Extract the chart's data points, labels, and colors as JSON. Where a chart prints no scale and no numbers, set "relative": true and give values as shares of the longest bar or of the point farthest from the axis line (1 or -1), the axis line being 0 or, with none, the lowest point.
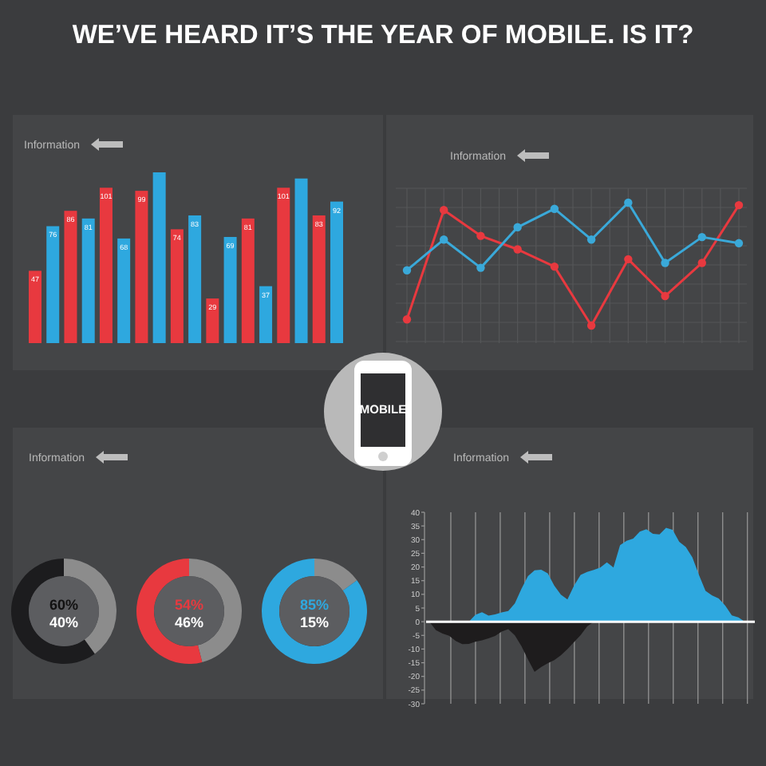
{
  "chart_data": [
    {
      "type": "other",
      "title": "WE’VE HEARD IT’S THE YEAR OF MOBILE. IS IT?",
      "annotations": [
        "MOBILE"
      ]
    },
    {
      "type": "bar",
      "title": "Information",
      "categories": [
        null,
        null,
        null,
        null,
        null,
        null,
        null,
        null,
        null
      ],
      "series": [
        {
          "color": "#e8393f",
          "values": [
            47,
            86,
            101,
            99,
            74,
            29,
            81,
            101,
            83
          ],
          "value_labels": [
            "47",
            "86",
            "101",
            "99",
            "74",
            "29",
            "81",
            "101",
            "83"
          ]
        },
        {
          "color": "#2ea8df",
          "values": [
            76,
            81,
            68,
            111,
            83,
            69,
            37,
            107,
            92
          ],
          "value_labels": [
            "76",
            "81",
            "68",
            null,
            "83",
            "69",
            "37",
            null,
            "92"
          ]
        }
      ]
    },
    {
      "type": "line",
      "title": "Information",
      "relative": true,
      "grid": true,
      "marker": "circle",
      "categories": [
        null,
        null,
        null,
        null,
        null,
        null,
        null,
        null,
        null,
        null
      ],
      "series": [
        {
          "color": "#e8393f",
          "values": [
            0.05,
            0.94,
            0.73,
            0.62,
            0.48,
            0,
            0.54,
            0.24,
            0.51,
            0.98
          ]
        },
        {
          "color": "#3aa9d9",
          "values": [
            0.45,
            0.7,
            0.47,
            0.8,
            0.95,
            0.7,
            1,
            0.51,
            0.72,
            0.67
          ]
        }
      ]
    },
    {
      "type": "donut",
      "title": "Information",
      "categories": [
        null,
        null
      ],
      "values": [
        40,
        60
      ],
      "colors": [
        "#8c8c8c",
        "#1c1c1e"
      ],
      "annotations": [
        "60%",
        "40%"
      ]
    },
    {
      "type": "donut",
      "categories": [
        null,
        null
      ],
      "values": [
        46,
        54
      ],
      "colors": [
        "#8c8c8c",
        "#e8393f"
      ],
      "annotations": [
        "54%",
        "46%"
      ]
    },
    {
      "type": "donut",
      "categories": [
        null,
        null
      ],
      "values": [
        15,
        85
      ],
      "colors": [
        "#8c8c8c",
        "#2ea8df"
      ],
      "annotations": [
        "85%",
        "15%"
      ]
    },
    {
      "type": "area",
      "title": "Information",
      "ylim": [
        -30,
        40
      ],
      "grid": "x",
      "tick_labels": "y",
      "categories": [
        null,
        null,
        null,
        null,
        null,
        null,
        null,
        null,
        null,
        null,
        null,
        null,
        null,
        null,
        null,
        null,
        null,
        null,
        null,
        null,
        null,
        null,
        null,
        null,
        null,
        null,
        null,
        null,
        null,
        null,
        null,
        null,
        null,
        null,
        null,
        null,
        null,
        null,
        null,
        null,
        null,
        null,
        null,
        null,
        null,
        null,
        null,
        null,
        null,
        null
      ],
      "yticks": [
        -30,
        -25,
        -20,
        -15,
        -10,
        -5,
        0,
        5,
        10,
        15,
        20,
        25,
        30,
        35,
        40
      ],
      "series": [
        {
          "color": "#2ea8df",
          "values": [
            0,
            0,
            0,
            0,
            0,
            0,
            0,
            2.5,
            3.5,
            2.2,
            2.7,
            3.4,
            3.9,
            6.7,
            12,
            16.7,
            18.8,
            19,
            17.7,
            13.2,
            9.9,
            8.1,
            13.2,
            17.1,
            18.2,
            18.9,
            19.8,
            21.7,
            19.8,
            28,
            29.6,
            30.4,
            32.9,
            33.8,
            32.1,
            31.9,
            34.3,
            33.6,
            29.2,
            27.3,
            23.5,
            17.1,
            11.3,
            9.6,
            8.5,
            5.9,
            2.3,
            1.6,
            0,
            0
          ]
        },
        {
          "color": "#1e1c1d",
          "values": [
            0,
            -3.1,
            -4.3,
            -5.1,
            -7,
            -8.2,
            -8.1,
            -7.3,
            -6.8,
            -6.1,
            -5.2,
            -3.6,
            -2.7,
            -5,
            -8.9,
            -13.8,
            -18.3,
            -16.6,
            -15.2,
            -14,
            -12.3,
            -10,
            -7.5,
            -4.9,
            -1.7,
            0,
            0,
            0,
            0,
            0,
            0,
            0,
            0,
            0,
            0,
            0,
            0,
            0,
            0,
            0,
            0,
            0,
            0,
            0,
            0,
            0,
            0,
            0,
            0,
            0
          ]
        }
      ]
    }
  ]
}
